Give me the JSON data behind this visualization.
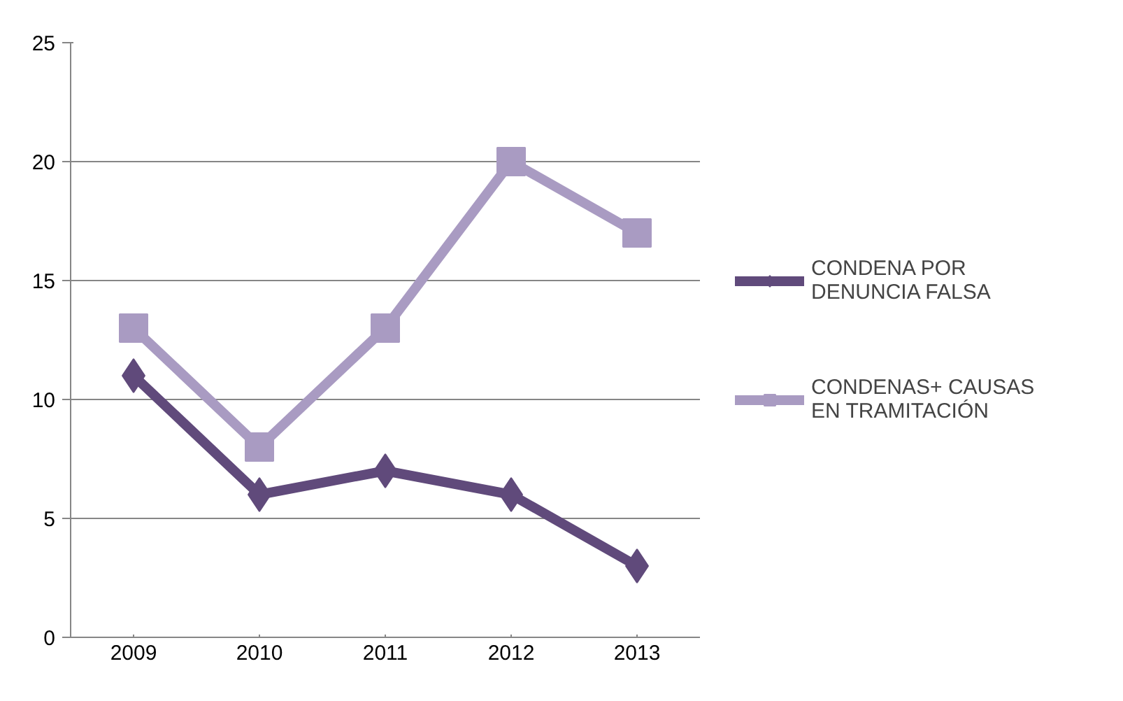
{
  "chart_data": {
    "type": "line",
    "categories": [
      "2009",
      "2010",
      "2011",
      "2012",
      "2013"
    ],
    "series": [
      {
        "name": "CONDENA POR DENUNCIA FALSA",
        "color": "#604a7b",
        "values": [
          11,
          6,
          7,
          6,
          3
        ],
        "marker": "diamond"
      },
      {
        "name": "CONDENAS+ CAUSAS EN TRAMITACIÓN",
        "color": "#a99bc2",
        "values": [
          13,
          8,
          13,
          20,
          17
        ],
        "marker": "square"
      }
    ],
    "ylim": [
      0,
      25
    ],
    "yticks": [
      0,
      5,
      10,
      15,
      20,
      25
    ],
    "grid": "y",
    "legend": "right",
    "line_style": "solid"
  }
}
